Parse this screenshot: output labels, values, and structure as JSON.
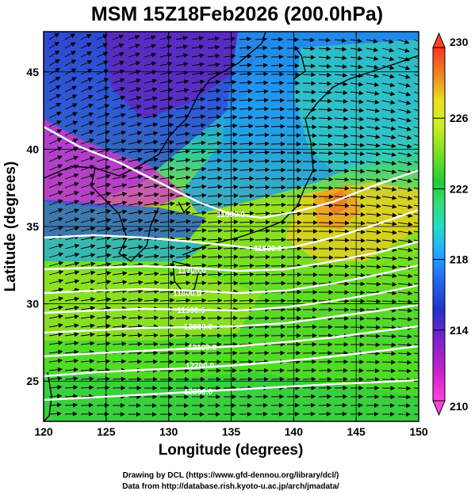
{
  "title": "MSM 15Z18Feb2026 (200.0hPa)",
  "xlabel": "Longitude (degrees)",
  "ylabel": "Latitude  (degrees)",
  "credits": {
    "line1": "Drawing by DCL (https://www.gfd-dennou.org/library/dcl/)",
    "line2": "Data from http://database.rish.kyoto-u.ac.jp/arch/jmadata/"
  },
  "chart_data": {
    "type": "heatmap",
    "field": "shaded temperature with geopotential height contours and wind vectors",
    "xlim": [
      120,
      150
    ],
    "ylim": [
      22.4,
      47.6
    ],
    "xticks": [
      120,
      125,
      130,
      135,
      140,
      145,
      150
    ],
    "yticks": [
      25,
      30,
      35,
      40,
      45
    ],
    "colorbar": {
      "min": 210,
      "max": 230,
      "ticks": [
        210,
        214,
        218,
        222,
        226,
        230
      ],
      "colors": [
        "#ff33cc",
        "#cc22cc",
        "#7a22cc",
        "#2233cc",
        "#2266ee",
        "#2299ff",
        "#22ccee",
        "#33dd99",
        "#22cc44",
        "#55dd22",
        "#99ee22",
        "#ccee22",
        "#eedd22",
        "#ee9922",
        "#ee5522",
        "#ff3322"
      ]
    },
    "contours": [
      {
        "label": "11500.0"
      },
      {
        "label": "11600.0"
      },
      {
        "label": "11700.0"
      },
      {
        "label": "11800.0"
      },
      {
        "label": "11900.0"
      },
      {
        "label": "12000.0"
      },
      {
        "label": "12100.0"
      },
      {
        "label": "12200.0"
      },
      {
        "label": "12300.0"
      }
    ]
  }
}
